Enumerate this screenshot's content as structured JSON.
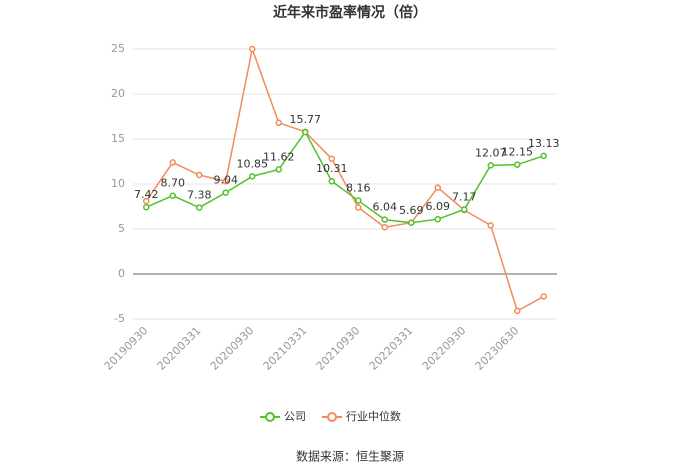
{
  "chart_data": {
    "type": "line",
    "title": "近年来市盈率情况（倍）",
    "categories": [
      "20190930",
      null,
      "20200331",
      null,
      "20200930",
      null,
      "20210331",
      null,
      "20210930",
      null,
      "20220331",
      null,
      "20220930",
      null,
      "20230630",
      null
    ],
    "series": [
      {
        "name": "公司",
        "color": "#52c12a",
        "values": [
          7.42,
          8.7,
          7.38,
          9.04,
          10.85,
          11.62,
          15.77,
          10.31,
          8.16,
          6.04,
          5.69,
          6.09,
          7.17,
          12.07,
          12.15,
          13.13
        ],
        "value_labels": [
          "7.42",
          "8.70",
          "7.38",
          "9.04",
          "10.85",
          "11.62",
          "15.77",
          "10.31",
          "8.16",
          "6.04",
          "5.69",
          "6.09",
          "7.17",
          "12.07",
          "12.15",
          "13.13"
        ]
      },
      {
        "name": "行业中位数",
        "color": "#f28b5c",
        "values": [
          8.1,
          12.4,
          11.0,
          10.3,
          25.0,
          16.8,
          15.8,
          12.8,
          7.4,
          5.2,
          5.7,
          9.6,
          7.1,
          5.4,
          -4.1,
          -2.5
        ]
      }
    ],
    "ylim": [
      -5,
      25
    ],
    "yticks": [
      -5,
      0,
      5,
      10,
      15,
      20,
      25
    ],
    "grid": true,
    "legend": "bottom",
    "source": "数据来源：恒生聚源"
  }
}
